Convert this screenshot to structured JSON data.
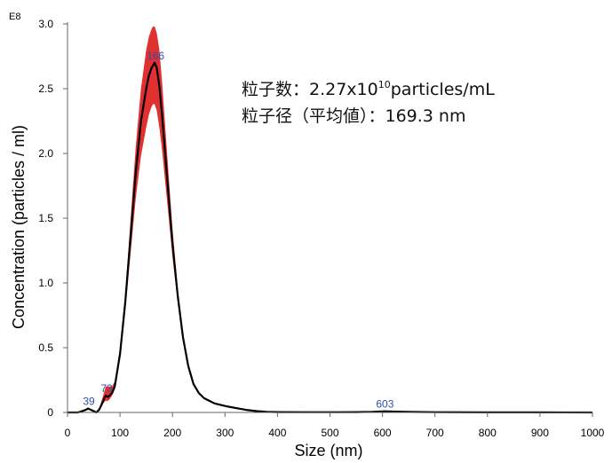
{
  "chart_data": {
    "type": "line",
    "title": "",
    "xlabel": "Size (nm)",
    "ylabel": "Concentration (particles / ml)",
    "y_exponent_label": "E8",
    "xlim": [
      0,
      1000
    ],
    "ylim": [
      0,
      3.0
    ],
    "x_ticks": [
      "0",
      "100",
      "200",
      "300",
      "400",
      "500",
      "600",
      "700",
      "800",
      "900",
      "1000"
    ],
    "y_ticks": [
      "0",
      "0.5",
      "1.0",
      "1.5",
      "2.0",
      "2.5",
      "3.0"
    ],
    "grid": false,
    "legend": "none",
    "colors": {
      "mean_line": "#000000",
      "error_band": "#e03030",
      "peak_labels": "#2f4fa8"
    },
    "series": [
      {
        "x": [
          0,
          20,
          35,
          39,
          45,
          55,
          60,
          65,
          70,
          73,
          77,
          80,
          85,
          90,
          100,
          110,
          120,
          130,
          140,
          150,
          155,
          160,
          163,
          166,
          170,
          175,
          180,
          190,
          200,
          210,
          220,
          230,
          240,
          250,
          260,
          270,
          280,
          300,
          320,
          340,
          360,
          380,
          400,
          450,
          500,
          550,
          580,
          600,
          603,
          620,
          650,
          700,
          800,
          900,
          1000
        ],
        "values": [
          0,
          0.0,
          0.02,
          0.03,
          0.02,
          0.0,
          0.02,
          0.06,
          0.11,
          0.13,
          0.12,
          0.13,
          0.15,
          0.2,
          0.45,
          0.85,
          1.35,
          1.85,
          2.25,
          2.5,
          2.6,
          2.66,
          2.68,
          2.7,
          2.66,
          2.52,
          2.3,
          1.8,
          1.3,
          0.9,
          0.58,
          0.36,
          0.22,
          0.15,
          0.11,
          0.09,
          0.07,
          0.05,
          0.035,
          0.02,
          0.01,
          0.005,
          0.003,
          0.002,
          0.002,
          0.003,
          0.005,
          0.008,
          0.009,
          0.007,
          0.004,
          0.002,
          0.001,
          0.001,
          0.0
        ],
        "lower": [
          0,
          0.0,
          0.02,
          0.03,
          0.02,
          0.0,
          0.02,
          0.05,
          0.08,
          0.09,
          0.09,
          0.1,
          0.13,
          0.18,
          0.42,
          0.78,
          1.22,
          1.65,
          1.98,
          2.2,
          2.3,
          2.36,
          2.38,
          2.38,
          2.33,
          2.2,
          2.03,
          1.62,
          1.2,
          0.85,
          0.56,
          0.35,
          0.22,
          0.15,
          0.11,
          0.09,
          0.07,
          0.05,
          0.035,
          0.02,
          0.01,
          0.005,
          0.003,
          0.002,
          0.002,
          0.003,
          0.005,
          0.008,
          0.009,
          0.007,
          0.004,
          0.002,
          0.001,
          0.001,
          0.0
        ],
        "upper": [
          0,
          0.0,
          0.02,
          0.03,
          0.02,
          0.0,
          0.03,
          0.09,
          0.16,
          0.2,
          0.2,
          0.2,
          0.2,
          0.24,
          0.5,
          0.92,
          1.48,
          2.05,
          2.5,
          2.8,
          2.9,
          2.96,
          2.98,
          2.98,
          2.93,
          2.8,
          2.56,
          1.98,
          1.42,
          0.96,
          0.62,
          0.38,
          0.23,
          0.16,
          0.11,
          0.09,
          0.07,
          0.05,
          0.035,
          0.02,
          0.01,
          0.005,
          0.003,
          0.002,
          0.002,
          0.003,
          0.005,
          0.008,
          0.009,
          0.007,
          0.004,
          0.002,
          0.001,
          0.001,
          0.0
        ]
      }
    ],
    "peak_labels": [
      {
        "label": "39",
        "x": 39,
        "y": 0.03
      },
      {
        "label": "73",
        "x": 73,
        "y": 0.13
      },
      {
        "label": "166",
        "x": 166,
        "y": 2.7
      },
      {
        "label": "603",
        "x": 603,
        "y": 0.009
      }
    ],
    "annotation": {
      "line1_prefix": "粒子数：2.27x10",
      "line1_sup": "10",
      "line1_suffix": "particles/mL",
      "line2": "粒子径（平均値）：169.3 nm"
    }
  }
}
